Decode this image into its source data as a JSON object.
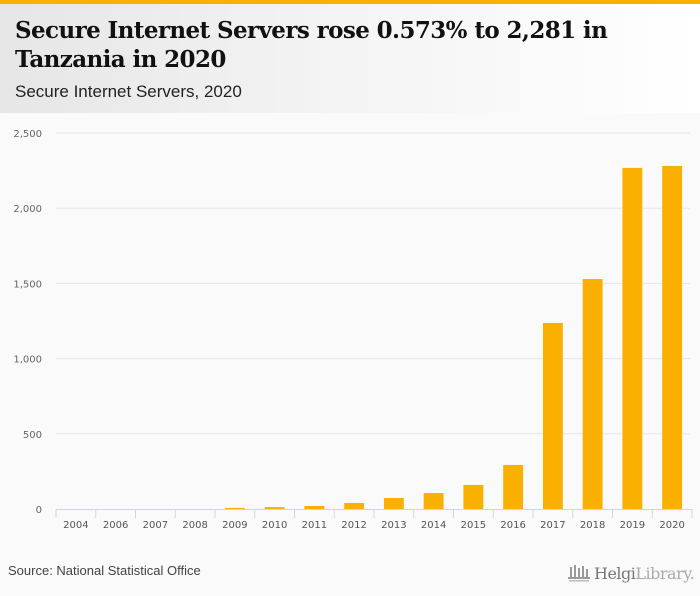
{
  "header": {
    "title": "Secure Internet Servers rose 0.573% to 2,281 in Tanzania in 2020",
    "subtitle": "Secure Internet Servers, 2020"
  },
  "footer": {
    "source": "Source: National Statistical Office",
    "logo_bold": "Helgi",
    "logo_light": "Library."
  },
  "colors": {
    "accent": "#f9b000",
    "bar": "#f9b000",
    "grid": "#e6e6e6",
    "axis": "#ccd6eb"
  },
  "chart_data": {
    "type": "bar",
    "title": "Secure Internet Servers rose 0.573% to 2,281 in Tanzania in 2020",
    "subtitle": "Secure Internet Servers, 2020",
    "xlabel": "",
    "ylabel": "",
    "categories": [
      "2004",
      "2006",
      "2007",
      "2008",
      "2009",
      "2010",
      "2011",
      "2012",
      "2013",
      "2014",
      "2015",
      "2016",
      "2017",
      "2018",
      "2019",
      "2020"
    ],
    "values": [
      0,
      0,
      0,
      0,
      7,
      13,
      20,
      40,
      73,
      106,
      160,
      293,
      1237,
      1529,
      2268,
      2281
    ],
    "ylim": [
      0,
      2500
    ],
    "yticks": [
      0,
      500,
      1000,
      1500,
      2000,
      2500
    ],
    "ytick_labels": [
      "0",
      "500",
      "1,000",
      "1,500",
      "2,000",
      "2,500"
    ],
    "grid": true,
    "legend": "none"
  }
}
